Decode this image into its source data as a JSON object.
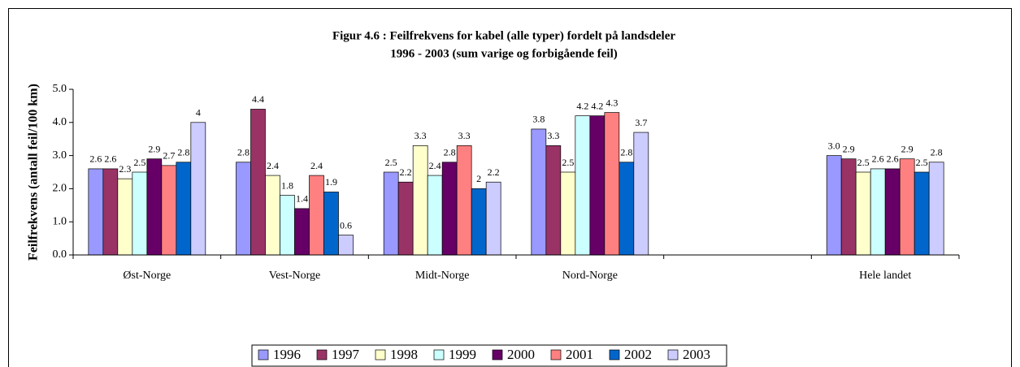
{
  "chart_data": {
    "type": "bar",
    "title": "Figur 4.6 : Feilfrekvens for kabel (alle typer)  fordelt på landsdeler",
    "subtitle": "1996 - 2003 (sum varige og forbigående feil)",
    "y_label": "Feilfrekvens (antall feil/100 km)",
    "categories": [
      "Øst-Norge",
      "Vest-Norge",
      "Midt-Norge",
      "Nord-Norge",
      null,
      "Hele landet"
    ],
    "series": [
      {
        "name": "1996",
        "color": "#9999ff",
        "values": [
          2.6,
          2.8,
          2.5,
          3.8,
          null,
          3.0
        ],
        "value_labels": [
          "2.6",
          "2.8",
          "2.5",
          "3.8",
          null,
          "3.0"
        ]
      },
      {
        "name": "1997",
        "color": "#993366",
        "values": [
          2.6,
          4.4,
          2.2,
          3.3,
          null,
          2.9
        ]
      },
      {
        "name": "1998",
        "color": "#ffffcc",
        "values": [
          2.3,
          2.4,
          3.3,
          2.5,
          null,
          2.5
        ]
      },
      {
        "name": "1999",
        "color": "#ccffff",
        "values": [
          2.5,
          1.8,
          2.4,
          4.2,
          null,
          2.6
        ]
      },
      {
        "name": "2000",
        "color": "#660066",
        "values": [
          2.9,
          1.4,
          2.8,
          4.2,
          null,
          2.6
        ]
      },
      {
        "name": "2001",
        "color": "#ff8080",
        "values": [
          2.7,
          2.4,
          3.3,
          4.3,
          null,
          2.9
        ]
      },
      {
        "name": "2002",
        "color": "#0066cc",
        "values": [
          2.8,
          1.9,
          2,
          2.8,
          null,
          2.5
        ]
      },
      {
        "name": "2003",
        "color": "#ccccff",
        "values": [
          4,
          0.6,
          2.2,
          3.7,
          null,
          2.8
        ]
      }
    ],
    "ylim": [
      0,
      5
    ],
    "yticks": [
      {
        "value": 0,
        "label": "0.0"
      },
      {
        "value": 1,
        "label": "1.0"
      },
      {
        "value": 2,
        "label": "2.0"
      },
      {
        "value": 3,
        "label": "3.0"
      },
      {
        "value": 4,
        "label": "4.0"
      },
      {
        "value": 5,
        "label": "5.0"
      }
    ],
    "legend": "bottom"
  }
}
